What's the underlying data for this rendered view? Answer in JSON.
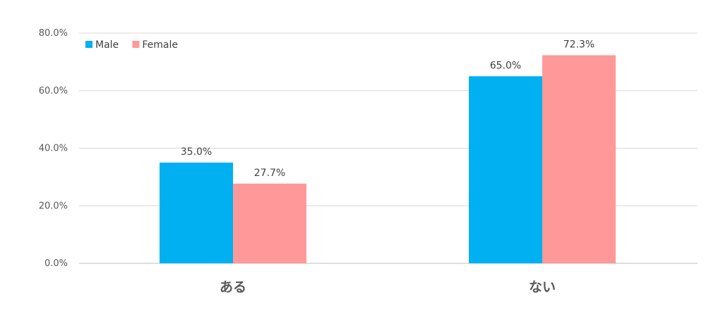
{
  "chart_data": {
    "type": "bar",
    "categories": [
      "ある",
      "ない"
    ],
    "series": [
      {
        "name": "Male",
        "values": [
          35.0,
          65.0
        ],
        "color": "#00B0F0"
      },
      {
        "name": "Female",
        "values": [
          27.7,
          72.3
        ],
        "color": "#FF9999"
      }
    ],
    "data_labels": [
      [
        "35.0%",
        "65.0%"
      ],
      [
        "27.7%",
        "72.3%"
      ]
    ],
    "y_ticks": [
      0,
      20,
      40,
      60,
      80
    ],
    "y_tick_labels": [
      "0.0%",
      "20.0%",
      "40.0%",
      "60.0%",
      "80.0%"
    ],
    "ylim": [
      0,
      80
    ],
    "grid": true,
    "legend_position": "top-left",
    "title": "",
    "xlabel": "",
    "ylabel": ""
  }
}
